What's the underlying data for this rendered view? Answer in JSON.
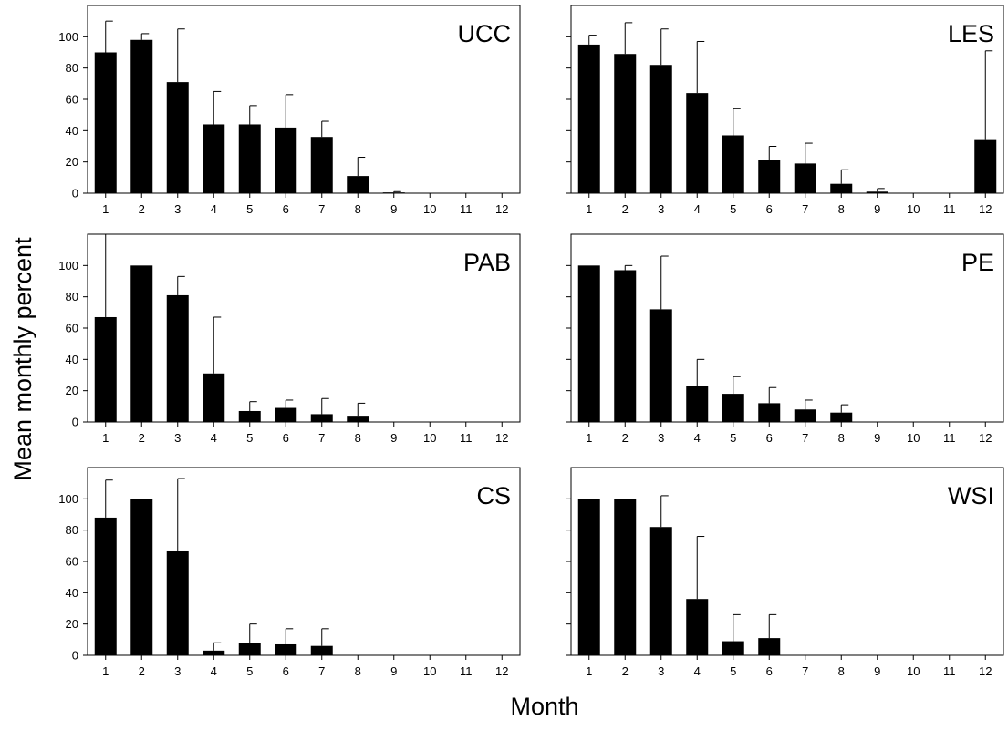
{
  "figure": {
    "ylabel": "Mean monthly percent",
    "xlabel": "Month"
  },
  "chart_data": [
    {
      "type": "bar",
      "title": "UCC",
      "categories": [
        "1",
        "2",
        "3",
        "4",
        "5",
        "6",
        "7",
        "8",
        "9",
        "10",
        "11",
        "12"
      ],
      "values": [
        90,
        98,
        71,
        44,
        44,
        42,
        36,
        11,
        0.5,
        0,
        0,
        0
      ],
      "error_upper": [
        20,
        4,
        34,
        21,
        12,
        21,
        10,
        12,
        0.5,
        0,
        0,
        0
      ],
      "yticks": [
        0,
        20,
        40,
        60,
        80,
        100
      ],
      "ylim": [
        0,
        120
      ],
      "show_ytick_labels": true
    },
    {
      "type": "bar",
      "title": "LES",
      "categories": [
        "1",
        "2",
        "3",
        "4",
        "5",
        "6",
        "7",
        "8",
        "9",
        "10",
        "11",
        "12"
      ],
      "values": [
        95,
        89,
        82,
        64,
        37,
        21,
        19,
        6,
        1,
        0,
        0,
        34
      ],
      "error_upper": [
        6,
        20,
        23,
        33,
        17,
        9,
        13,
        9,
        2,
        0,
        0,
        57
      ],
      "yticks": [
        0,
        20,
        40,
        60,
        80,
        100
      ],
      "ylim": [
        0,
        120
      ],
      "show_ytick_labels": false
    },
    {
      "type": "bar",
      "title": "PAB",
      "categories": [
        "1",
        "2",
        "3",
        "4",
        "5",
        "6",
        "7",
        "8",
        "9",
        "10",
        "11",
        "12"
      ],
      "values": [
        67,
        100,
        81,
        31,
        7,
        9,
        5,
        4,
        0,
        0,
        0,
        0
      ],
      "error_upper": [
        53,
        0,
        12,
        36,
        6,
        5,
        10,
        8,
        0,
        0,
        0,
        0
      ],
      "yticks": [
        0,
        20,
        40,
        60,
        80,
        100
      ],
      "ylim": [
        0,
        120
      ],
      "show_ytick_labels": true
    },
    {
      "type": "bar",
      "title": "PE",
      "categories": [
        "1",
        "2",
        "3",
        "4",
        "5",
        "6",
        "7",
        "8",
        "9",
        "10",
        "11",
        "12"
      ],
      "values": [
        100,
        97,
        72,
        23,
        18,
        12,
        8,
        6,
        0,
        0,
        0,
        0
      ],
      "error_upper": [
        0,
        3,
        34,
        17,
        11,
        10,
        6,
        5,
        0,
        0,
        0,
        0
      ],
      "yticks": [
        0,
        20,
        40,
        60,
        80,
        100
      ],
      "ylim": [
        0,
        120
      ],
      "show_ytick_labels": false
    },
    {
      "type": "bar",
      "title": "CS",
      "categories": [
        "1",
        "2",
        "3",
        "4",
        "5",
        "6",
        "7",
        "8",
        "9",
        "10",
        "11",
        "12"
      ],
      "values": [
        88,
        100,
        67,
        3,
        8,
        7,
        6,
        0,
        0,
        0,
        0,
        0
      ],
      "error_upper": [
        24,
        0,
        46,
        5,
        12,
        10,
        11,
        0,
        0,
        0,
        0,
        0
      ],
      "yticks": [
        0,
        20,
        40,
        60,
        80,
        100
      ],
      "ylim": [
        0,
        120
      ],
      "show_ytick_labels": true
    },
    {
      "type": "bar",
      "title": "WSI",
      "categories": [
        "1",
        "2",
        "3",
        "4",
        "5",
        "6",
        "7",
        "8",
        "9",
        "10",
        "11",
        "12"
      ],
      "values": [
        100,
        100,
        82,
        36,
        9,
        11,
        0,
        0,
        0,
        0,
        0,
        0
      ],
      "error_upper": [
        0,
        0,
        20,
        40,
        17,
        15,
        0,
        0,
        0,
        0,
        0,
        0
      ],
      "yticks": [
        0,
        20,
        40,
        60,
        80,
        100
      ],
      "ylim": [
        0,
        120
      ],
      "show_ytick_labels": false
    }
  ]
}
